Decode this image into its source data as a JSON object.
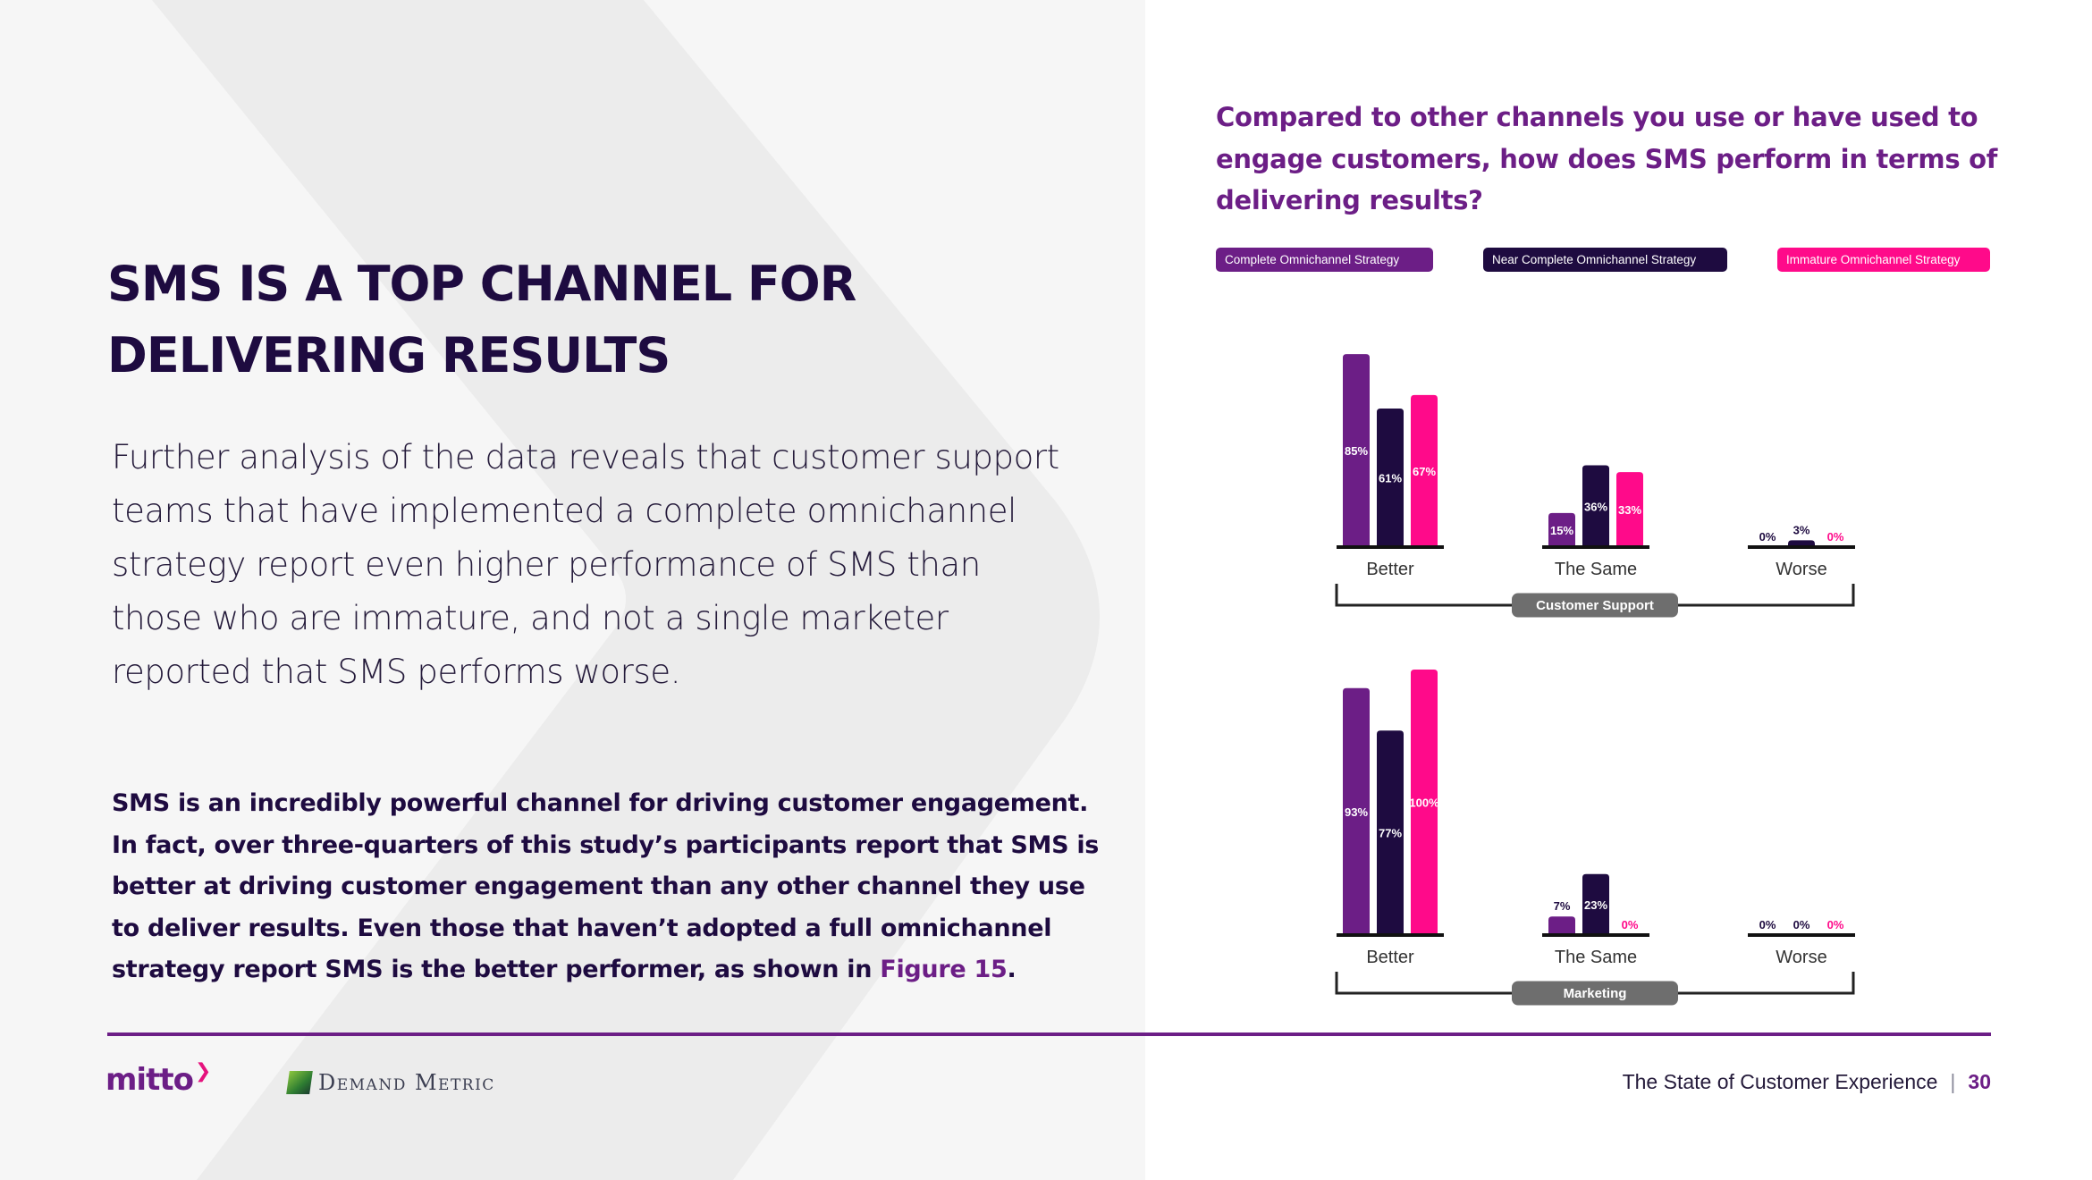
{
  "page": {
    "title": "SMS IS A TOP CHANNEL FOR DELIVERING RESULTS",
    "intro": "Further analysis of the data reveals that customer support teams that have implemented a complete omnichannel strategy report even higher performance of SMS than those who are immature, and not a single marketer reported that SMS performs worse.",
    "paragraph": "SMS is an incredibly powerful channel for driving customer engagement. In fact, over three-quarters of this study’s participants report that SMS is better at driving customer engagement than any other channel they use to deliver results. Even those that haven’t adopted a full omnichannel strategy report SMS is the better performer, as shown in",
    "figure_link": "Figure 15",
    "paragraph_end": "."
  },
  "footer": {
    "brand_left": "mitto",
    "brand_right": "Demand Metric",
    "report_title": "The State of Customer Experience",
    "separator": "|",
    "page_number": "30"
  },
  "colors": {
    "purple": "#6c1e86",
    "dark": "#1e0b40",
    "pink": "#ff0a8a",
    "gray_pill": "#6e6e6e"
  },
  "chart_data": {
    "type": "bar",
    "title": "Compared to other channels you use or have used to engage customers, how does SMS perform in terms of delivering results?",
    "legend": [
      {
        "name": "Complete Omnichannel Strategy",
        "color": "#6c1e86"
      },
      {
        "name": "Near Complete Omnichannel Strategy",
        "color": "#1e0b40"
      },
      {
        "name": "Immature Omnichannel Strategy",
        "color": "#ff0a8a"
      }
    ],
    "value_suffix": "%",
    "ylim": [
      0,
      100
    ],
    "panels": [
      {
        "group_label": "Customer Support",
        "categories": [
          "Better",
          "The Same",
          "Worse"
        ],
        "series": [
          {
            "name": "Complete Omnichannel Strategy",
            "values": [
              85,
              15,
              0
            ]
          },
          {
            "name": "Near Complete Omnichannel Strategy",
            "values": [
              61,
              36,
              3
            ]
          },
          {
            "name": "Immature Omnichannel Strategy",
            "values": [
              67,
              33,
              0
            ]
          }
        ]
      },
      {
        "group_label": "Marketing",
        "categories": [
          "Better",
          "The Same",
          "Worse"
        ],
        "series": [
          {
            "name": "Complete Omnichannel Strategy",
            "values": [
              93,
              7,
              0
            ]
          },
          {
            "name": "Near Complete Omnichannel Strategy",
            "values": [
              77,
              23,
              0
            ]
          },
          {
            "name": "Immature Omnichannel Strategy",
            "values": [
              100,
              0,
              0
            ]
          }
        ]
      }
    ]
  }
}
